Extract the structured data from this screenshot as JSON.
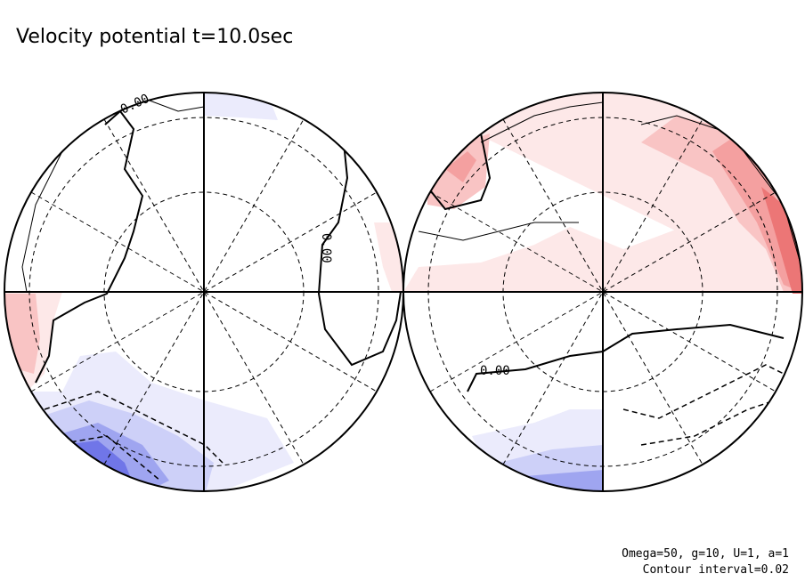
{
  "title": "Velocity potential t=10.0sec",
  "panels": [
    {
      "contour_labels": [
        "0.00",
        "0.00"
      ]
    },
    {
      "contour_labels": [
        "0.00"
      ]
    }
  ],
  "footer": {
    "parameters": "Omega=50, g=10, U=1, a=1",
    "contour_interval": "Contour interval=0.02"
  }
}
